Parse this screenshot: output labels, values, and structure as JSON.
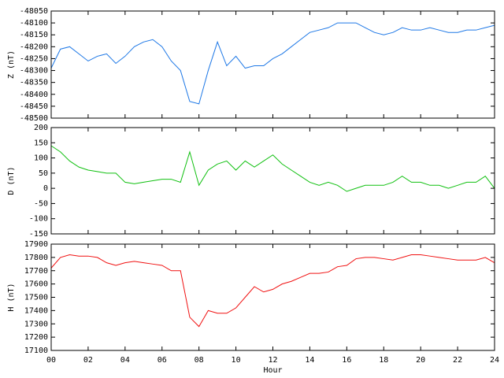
{
  "chart_data": [
    {
      "type": "line",
      "ylabel": "Z (nT)",
      "x": [
        0,
        0.5,
        1,
        1.5,
        2,
        2.5,
        3,
        3.5,
        4,
        4.5,
        5,
        5.5,
        6,
        6.5,
        7,
        7.5,
        8,
        8.5,
        9,
        9.5,
        10,
        10.5,
        11,
        11.5,
        12,
        12.5,
        13,
        13.5,
        14,
        14.5,
        15,
        15.5,
        16,
        16.5,
        17,
        17.5,
        18,
        18.5,
        19,
        19.5,
        20,
        20.5,
        21,
        21.5,
        22,
        22.5,
        23,
        23.5,
        24
      ],
      "series": [
        {
          "name": "Z",
          "color": "#1e78e6",
          "values": [
            -48290,
            -48210,
            -48200,
            -48230,
            -48260,
            -48240,
            -48230,
            -48270,
            -48240,
            -48200,
            -48180,
            -48170,
            -48200,
            -48260,
            -48300,
            -48430,
            -48440,
            -48300,
            -48180,
            -48280,
            -48240,
            -48290,
            -48280,
            -48280,
            -48250,
            -48230,
            -48200,
            -48170,
            -48140,
            -48130,
            -48120,
            -48100,
            -48100,
            -48100,
            -48120,
            -48140,
            -48150,
            -48140,
            -48120,
            -48130,
            -48130,
            -48120,
            -48130,
            -48140,
            -48140,
            -48130,
            -48130,
            -48120,
            -48110
          ]
        }
      ],
      "xlim": [
        0,
        24
      ],
      "xticks": [
        0,
        2,
        4,
        6,
        8,
        10,
        12,
        14,
        16,
        18,
        20,
        22,
        24
      ],
      "ylim": [
        -48500,
        -48050
      ],
      "yticks": [
        -48500,
        -48450,
        -48400,
        -48350,
        -48300,
        -48250,
        -48200,
        -48150,
        -48100,
        -48050
      ]
    },
    {
      "type": "line",
      "ylabel": "D (nT)",
      "x": [
        0,
        0.5,
        1,
        1.5,
        2,
        2.5,
        3,
        3.5,
        4,
        4.5,
        5,
        5.5,
        6,
        6.5,
        7,
        7.5,
        8,
        8.5,
        9,
        9.5,
        10,
        10.5,
        11,
        11.5,
        12,
        12.5,
        13,
        13.5,
        14,
        14.5,
        15,
        15.5,
        16,
        16.5,
        17,
        17.5,
        18,
        18.5,
        19,
        19.5,
        20,
        20.5,
        21,
        21.5,
        22,
        22.5,
        23,
        23.5,
        24
      ],
      "series": [
        {
          "name": "D",
          "color": "#10c010",
          "values": [
            140,
            120,
            90,
            70,
            60,
            55,
            50,
            50,
            20,
            15,
            20,
            25,
            30,
            30,
            20,
            120,
            10,
            60,
            80,
            90,
            60,
            90,
            70,
            90,
            110,
            80,
            60,
            40,
            20,
            10,
            20,
            10,
            -10,
            0,
            10,
            10,
            10,
            20,
            40,
            20,
            20,
            10,
            10,
            0,
            10,
            20,
            20,
            40,
            0
          ]
        }
      ],
      "xlim": [
        0,
        24
      ],
      "xticks": [
        0,
        2,
        4,
        6,
        8,
        10,
        12,
        14,
        16,
        18,
        20,
        22,
        24
      ],
      "ylim": [
        -150,
        200
      ],
      "yticks": [
        -150,
        -100,
        -50,
        0,
        50,
        100,
        150,
        200
      ]
    },
    {
      "type": "line",
      "ylabel": "H (nT)",
      "xlabel": "Hour",
      "x": [
        0,
        0.5,
        1,
        1.5,
        2,
        2.5,
        3,
        3.5,
        4,
        4.5,
        5,
        5.5,
        6,
        6.5,
        7,
        7.5,
        8,
        8.5,
        9,
        9.5,
        10,
        10.5,
        11,
        11.5,
        12,
        12.5,
        13,
        13.5,
        14,
        14.5,
        15,
        15.5,
        16,
        16.5,
        17,
        17.5,
        18,
        18.5,
        19,
        19.5,
        20,
        20.5,
        21,
        21.5,
        22,
        22.5,
        23,
        23.5,
        24
      ],
      "series": [
        {
          "name": "H",
          "color": "#f01010",
          "values": [
            17720,
            17800,
            17820,
            17810,
            17810,
            17800,
            17760,
            17740,
            17760,
            17770,
            17760,
            17750,
            17740,
            17700,
            17700,
            17350,
            17280,
            17400,
            17380,
            17380,
            17420,
            17500,
            17580,
            17540,
            17560,
            17600,
            17620,
            17650,
            17680,
            17680,
            17690,
            17730,
            17740,
            17790,
            17800,
            17800,
            17790,
            17780,
            17800,
            17820,
            17820,
            17810,
            17800,
            17790,
            17780,
            17780,
            17780,
            17800,
            17760
          ]
        }
      ],
      "xlim": [
        0,
        24
      ],
      "xticks": [
        {
          "value": 0,
          "label": "00"
        },
        {
          "value": 2,
          "label": "02"
        },
        {
          "value": 4,
          "label": "04"
        },
        {
          "value": 6,
          "label": "06"
        },
        {
          "value": 8,
          "label": "08"
        },
        {
          "value": 10,
          "label": "10"
        },
        {
          "value": 12,
          "label": "12"
        },
        {
          "value": 14,
          "label": "14"
        },
        {
          "value": 16,
          "label": "16"
        },
        {
          "value": 18,
          "label": "18"
        },
        {
          "value": 20,
          "label": "20"
        },
        {
          "value": 22,
          "label": "22"
        },
        {
          "value": 24,
          "label": "24"
        }
      ],
      "ylim": [
        17100,
        17900
      ],
      "yticks": [
        17100,
        17200,
        17300,
        17400,
        17500,
        17600,
        17700,
        17800,
        17900
      ]
    }
  ]
}
